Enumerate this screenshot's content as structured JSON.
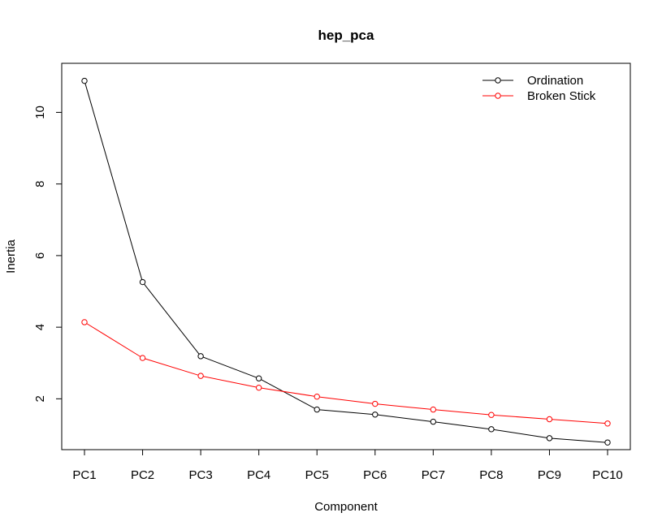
{
  "chart_data": {
    "type": "line",
    "title": "hep_pca",
    "xlabel": "Component",
    "ylabel": "Inertia",
    "categories": [
      "PC1",
      "PC2",
      "PC3",
      "PC4",
      "PC5",
      "PC6",
      "PC7",
      "PC8",
      "PC9",
      "PC10"
    ],
    "ylim": [
      0.58,
      11.37
    ],
    "yticks": [
      2,
      4,
      6,
      8,
      10
    ],
    "grid": false,
    "legend_position": "top-right",
    "markers": "open-circle",
    "series": [
      {
        "name": "Ordination",
        "color": "#000000",
        "values": [
          10.88,
          5.26,
          3.19,
          2.57,
          1.7,
          1.56,
          1.36,
          1.15,
          0.9,
          0.78
        ]
      },
      {
        "name": "Broken Stick",
        "color": "#ff0000",
        "values": [
          4.14,
          3.14,
          2.64,
          2.31,
          2.06,
          1.86,
          1.7,
          1.55,
          1.43,
          1.31
        ]
      }
    ]
  }
}
